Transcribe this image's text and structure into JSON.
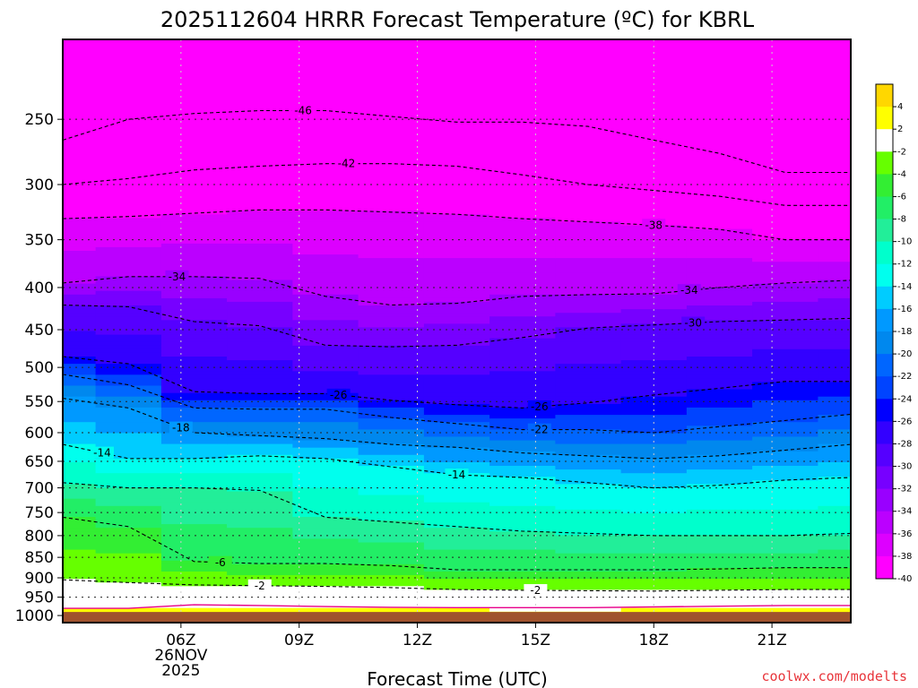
{
  "chart_data": {
    "type": "heatmap",
    "title": "2025112604 HRRR Forecast Temperature (ºC) for KBRL",
    "xlabel": "Forecast Time (UTC)",
    "credit": "coolwx.com/modelts",
    "x_range_hours": [
      3,
      23
    ],
    "x_ticks": [
      {
        "hour": 6,
        "label": "06Z",
        "sub1": "26NOV",
        "sub2": "2025"
      },
      {
        "hour": 9,
        "label": "09Z"
      },
      {
        "hour": 12,
        "label": "12Z"
      },
      {
        "hour": 15,
        "label": "15Z"
      },
      {
        "hour": 18,
        "label": "18Z"
      },
      {
        "hour": 21,
        "label": "21Z"
      }
    ],
    "y_range_hpa": [
      200,
      1020
    ],
    "y_ticks": [
      250,
      300,
      350,
      400,
      450,
      500,
      550,
      600,
      650,
      700,
      750,
      800,
      850,
      900,
      950,
      1000
    ],
    "grid": true,
    "colorbar": {
      "placement": "right",
      "levels": [
        -40,
        -38,
        -36,
        -34,
        -32,
        -30,
        -28,
        -26,
        -24,
        -22,
        -20,
        -18,
        -16,
        -14,
        -12,
        -10,
        -8,
        -6,
        -4,
        -2,
        2,
        4
      ],
      "tick_labels": [
        "4",
        "2",
        "-2",
        "-4",
        "-6",
        "-8",
        "-10",
        "-12",
        "-14",
        "-16",
        "-18",
        "-20",
        "-22",
        "-24",
        "-26",
        "-28",
        "-30",
        "-32",
        "-34",
        "-36",
        "-38",
        "-40"
      ],
      "colors": [
        {
          "from": 4,
          "to": 6,
          "color": "#ffd700"
        },
        {
          "from": 2,
          "to": 4,
          "color": "#ffff00"
        },
        {
          "from": -2,
          "to": 2,
          "color": "#ffffff"
        },
        {
          "from": -4,
          "to": -2,
          "color": "#66ff00"
        },
        {
          "from": -6,
          "to": -4,
          "color": "#33ee33"
        },
        {
          "from": -8,
          "to": -6,
          "color": "#22ee66"
        },
        {
          "from": -10,
          "to": -8,
          "color": "#22ee99"
        },
        {
          "from": -12,
          "to": -10,
          "color": "#00ffcc"
        },
        {
          "from": -14,
          "to": -12,
          "color": "#00ffee"
        },
        {
          "from": -16,
          "to": -14,
          "color": "#00ccff"
        },
        {
          "from": -18,
          "to": -16,
          "color": "#0099ff"
        },
        {
          "from": -20,
          "to": -18,
          "color": "#0088ee"
        },
        {
          "from": -22,
          "to": -20,
          "color": "#0066ff"
        },
        {
          "from": -24,
          "to": -22,
          "color": "#0044ff"
        },
        {
          "from": -26,
          "to": -24,
          "color": "#0000ff"
        },
        {
          "from": -28,
          "to": -26,
          "color": "#3300ff"
        },
        {
          "from": -30,
          "to": -28,
          "color": "#5500ff"
        },
        {
          "from": -32,
          "to": -30,
          "color": "#7700ff"
        },
        {
          "from": -34,
          "to": -32,
          "color": "#9900ff"
        },
        {
          "from": -36,
          "to": -34,
          "color": "#bb00ff"
        },
        {
          "from": -38,
          "to": -36,
          "color": "#dd00ff"
        },
        {
          "from": -40,
          "to": -38,
          "color": "#ff00ff"
        }
      ]
    },
    "ground_color": "#a0522d",
    "freezing_line_color": "#e8008a",
    "isotherms": [
      {
        "temp": -46,
        "hpa": [
          265,
          250,
          246,
          244,
          244,
          248,
          252,
          252,
          255,
          265,
          275,
          290,
          290
        ],
        "label": "-46",
        "label_hour": 9.1
      },
      {
        "temp": -42,
        "hpa": [
          300,
          295,
          288,
          285,
          283,
          283,
          285,
          292,
          300,
          305,
          310,
          318,
          318
        ],
        "label": "-42",
        "label_hour": 10.2
      },
      {
        "temp": -38,
        "hpa": [
          330,
          328,
          325,
          322,
          322,
          324,
          326,
          330,
          333,
          336,
          340,
          350,
          350
        ],
        "label": "-38",
        "label_hour": 18.0
      },
      {
        "temp": -34,
        "hpa": [
          395,
          388,
          388,
          390,
          410,
          420,
          418,
          410,
          408,
          407,
          400,
          395,
          392
        ],
        "label": "-34",
        "label_hour": 18.9,
        "label2": "-34",
        "label2_hour": 5.9
      },
      {
        "temp": -30,
        "hpa": [
          420,
          422,
          440,
          445,
          470,
          472,
          470,
          460,
          448,
          444,
          440,
          438,
          436
        ],
        "label": "-30",
        "label_hour": 19.0
      },
      {
        "temp": -26,
        "hpa": [
          485,
          495,
          535,
          538,
          538,
          548,
          555,
          560,
          552,
          540,
          530,
          520,
          520
        ],
        "label": "-26",
        "label_hour": 10.0,
        "label2": "-26",
        "label2_hour": 15.1
      },
      {
        "temp": -22,
        "hpa": [
          510,
          525,
          560,
          562,
          562,
          575,
          585,
          595,
          595,
          600,
          590,
          580,
          570
        ],
        "label": "-22",
        "label_hour": 15.1
      },
      {
        "temp": -18,
        "hpa": [
          545,
          560,
          600,
          605,
          610,
          620,
          625,
          635,
          640,
          645,
          640,
          630,
          620
        ],
        "label": "-18",
        "label_hour": 6.0
      },
      {
        "temp": -14,
        "hpa": [
          620,
          645,
          645,
          640,
          645,
          660,
          675,
          680,
          690,
          700,
          695,
          685,
          680
        ],
        "label": "-14",
        "label_hour": 4.0,
        "label2": "-14",
        "label2_hour": 13.0
      },
      {
        "temp": -10,
        "hpa": [
          690,
          700,
          700,
          705,
          760,
          770,
          780,
          790,
          795,
          800,
          800,
          800,
          795
        ],
        "label": ""
      },
      {
        "temp": -6,
        "hpa": [
          760,
          780,
          860,
          865,
          865,
          870,
          880,
          880,
          880,
          880,
          878,
          875,
          875
        ],
        "label": "-6",
        "label_hour": 7.0
      },
      {
        "temp": -2,
        "hpa": [
          905,
          912,
          918,
          920,
          922,
          925,
          930,
          932,
          933,
          934,
          932,
          930,
          930
        ],
        "label": "-2",
        "label_hour": 8.0,
        "label2": "-2",
        "label2_hour": 15.0
      }
    ]
  }
}
